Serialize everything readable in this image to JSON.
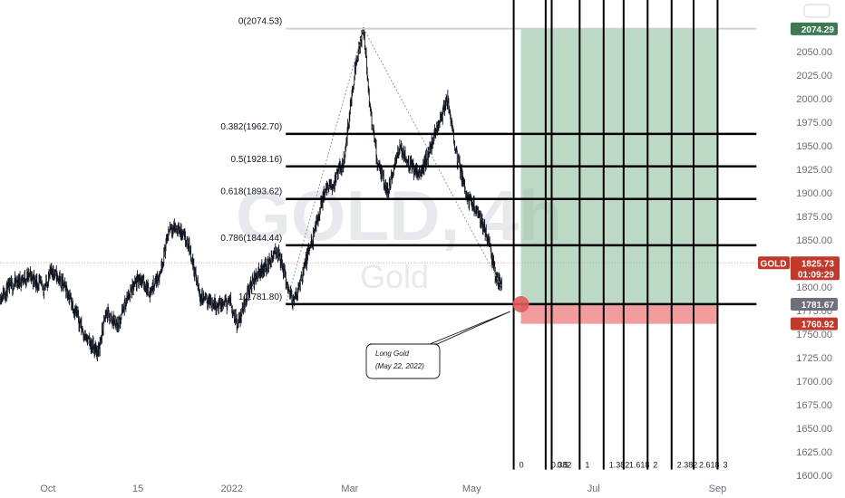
{
  "chart_data": {
    "type": "line",
    "symbol": "GOLD",
    "watermark": {
      "symbol": "GOLD, 4h",
      "name": "Gold"
    },
    "y_axis": {
      "ticks": [
        1600,
        1625,
        1650,
        1675,
        1700,
        1725,
        1750,
        1775,
        1800,
        1825,
        1850,
        1875,
        1900,
        1925,
        1950,
        1975,
        2000,
        2025,
        2050
      ],
      "tick_labels": [
        "1600.00",
        "1625.00",
        "1650.00",
        "1675.00",
        "1700.00",
        "1725.00",
        "1750.00",
        "1775.00",
        "1800.00",
        "1825.00",
        "1850.00",
        "1875.00",
        "1900.00",
        "1925.00",
        "1950.00",
        "1975.00",
        "2000.00",
        "2025.00",
        "2050.00"
      ],
      "ylim": [
        1597,
        2105
      ]
    },
    "x_axis": {
      "labels": [
        {
          "label": "Oct",
          "date": "2021-10-01"
        },
        {
          "label": "15",
          "date": "2021-11-15"
        },
        {
          "label": "2022",
          "date": "2022-01-01"
        },
        {
          "label": "Mar",
          "date": "2022-03-01"
        },
        {
          "label": "May",
          "date": "2022-05-01"
        },
        {
          "label": "Jul",
          "date": "2022-07-01"
        },
        {
          "label": "Sep",
          "date": "2022-09-01"
        }
      ],
      "xlim": [
        "2021-09-07",
        "2022-10-03"
      ]
    },
    "price_path": [
      {
        "date": "2021-09-07",
        "close": 1790
      },
      {
        "date": "2021-09-15",
        "close": 1805
      },
      {
        "date": "2021-09-22",
        "close": 1812
      },
      {
        "date": "2021-09-29",
        "close": 1798
      },
      {
        "date": "2021-10-03",
        "close": 1818
      },
      {
        "date": "2021-10-10",
        "close": 1798
      },
      {
        "date": "2021-10-15",
        "close": 1773
      },
      {
        "date": "2021-10-20",
        "close": 1745
      },
      {
        "date": "2021-10-26",
        "close": 1730
      },
      {
        "date": "2021-10-30",
        "close": 1772
      },
      {
        "date": "2021-11-05",
        "close": 1760
      },
      {
        "date": "2021-11-10",
        "close": 1790
      },
      {
        "date": "2021-11-16",
        "close": 1810
      },
      {
        "date": "2021-11-21",
        "close": 1795
      },
      {
        "date": "2021-11-26",
        "close": 1815
      },
      {
        "date": "2021-12-01",
        "close": 1865
      },
      {
        "date": "2021-12-06",
        "close": 1860
      },
      {
        "date": "2021-12-11",
        "close": 1840
      },
      {
        "date": "2021-12-16",
        "close": 1790
      },
      {
        "date": "2021-12-21",
        "close": 1785
      },
      {
        "date": "2021-12-26",
        "close": 1780
      },
      {
        "date": "2021-12-31",
        "close": 1785
      },
      {
        "date": "2022-01-04",
        "close": 1760
      },
      {
        "date": "2022-01-09",
        "close": 1795
      },
      {
        "date": "2022-01-14",
        "close": 1815
      },
      {
        "date": "2022-01-19",
        "close": 1825
      },
      {
        "date": "2022-01-24",
        "close": 1838
      },
      {
        "date": "2022-01-29",
        "close": 1800
      },
      {
        "date": "2022-02-01",
        "close": 1783
      },
      {
        "date": "2022-02-06",
        "close": 1820
      },
      {
        "date": "2022-02-11",
        "close": 1855
      },
      {
        "date": "2022-02-16",
        "close": 1900
      },
      {
        "date": "2022-02-21",
        "close": 1910
      },
      {
        "date": "2022-02-26",
        "close": 1935
      },
      {
        "date": "2022-03-01",
        "close": 1985
      },
      {
        "date": "2022-03-04",
        "close": 2040
      },
      {
        "date": "2022-03-08",
        "close": 2074
      },
      {
        "date": "2022-03-11",
        "close": 1990
      },
      {
        "date": "2022-03-15",
        "close": 1930
      },
      {
        "date": "2022-03-20",
        "close": 1900
      },
      {
        "date": "2022-03-26",
        "close": 1950
      },
      {
        "date": "2022-03-31",
        "close": 1930
      },
      {
        "date": "2022-04-05",
        "close": 1920
      },
      {
        "date": "2022-04-10",
        "close": 1945
      },
      {
        "date": "2022-04-15",
        "close": 1978
      },
      {
        "date": "2022-04-19",
        "close": 1998
      },
      {
        "date": "2022-04-24",
        "close": 1935
      },
      {
        "date": "2022-04-29",
        "close": 1895
      },
      {
        "date": "2022-05-04",
        "close": 1880
      },
      {
        "date": "2022-05-09",
        "close": 1852
      },
      {
        "date": "2022-05-13",
        "close": 1812
      },
      {
        "date": "2022-05-16",
        "close": 1800
      }
    ],
    "dashed_connector": [
      {
        "date": "2022-01-28",
        "value": 1781.8
      },
      {
        "date": "2022-03-08",
        "value": 2074.53
      },
      {
        "date": "2022-05-16",
        "value": 1800
      }
    ],
    "fibonacci_retracement": {
      "start_date": "2022-01-28",
      "end_date": "2022-09-15",
      "levels": [
        {
          "ratio": 0,
          "value": 2074.53,
          "label": "0(2074.53)"
        },
        {
          "ratio": 0.382,
          "value": 1962.7,
          "label": "0.382(1962.70)"
        },
        {
          "ratio": 0.5,
          "value": 1928.16,
          "label": "0.5(1928.16)"
        },
        {
          "ratio": 0.618,
          "value": 1893.62,
          "label": "0.618(1893.62)"
        },
        {
          "ratio": 0.786,
          "value": 1844.44,
          "label": "0.786(1844.44)"
        },
        {
          "ratio": 1,
          "value": 1781.8,
          "label": "1(1781.80)"
        }
      ]
    },
    "fibonacci_time_zones": {
      "top": 2120,
      "bottom": 1606,
      "lines": [
        {
          "date": "2022-05-22",
          "label": "0"
        },
        {
          "date": "2022-06-07",
          "label": "0.382"
        },
        {
          "date": "2022-06-10",
          "label": "0.5"
        },
        {
          "date": "2022-06-24",
          "label": "1"
        },
        {
          "date": "2022-07-06",
          "label": "1.382"
        },
        {
          "date": "2022-07-16",
          "label": "1.618"
        },
        {
          "date": "2022-07-28",
          "label": "2"
        },
        {
          "date": "2022-08-09",
          "label": "2.382"
        },
        {
          "date": "2022-08-20",
          "label": "2.618"
        },
        {
          "date": "2022-09-01",
          "label": "3"
        }
      ]
    },
    "long_position": {
      "start_date": "2022-05-22",
      "end_date": "2022-09-01",
      "entry": 1781.67,
      "target": 2074.29,
      "stop": 1760.92,
      "target_color": "#8fbf9f",
      "stop_color": "#ef8c8c"
    },
    "callout": {
      "lines": [
        "Long Gold",
        "(May 22, 2022)"
      ],
      "anchor": {
        "date": "2022-05-22",
        "value": 1781.67
      }
    },
    "last_price": {
      "label": "GOLD",
      "value": "1825.73",
      "countdown": "01:09:29",
      "price": 1825.73,
      "color": "#c0392b"
    },
    "price_tags": [
      {
        "value": 2074.29,
        "label": "2074.29",
        "color": "#3d7a52"
      },
      {
        "value": 1781.67,
        "label": "1781.67",
        "color": "#6d707a"
      },
      {
        "value": 1760.92,
        "label": "1760.92",
        "color": "#c0392b"
      }
    ],
    "colors": {
      "candles": "#131722",
      "fib_lines": "#000000",
      "grid": "none",
      "accent": "#c0392b"
    },
    "grid": false
  }
}
